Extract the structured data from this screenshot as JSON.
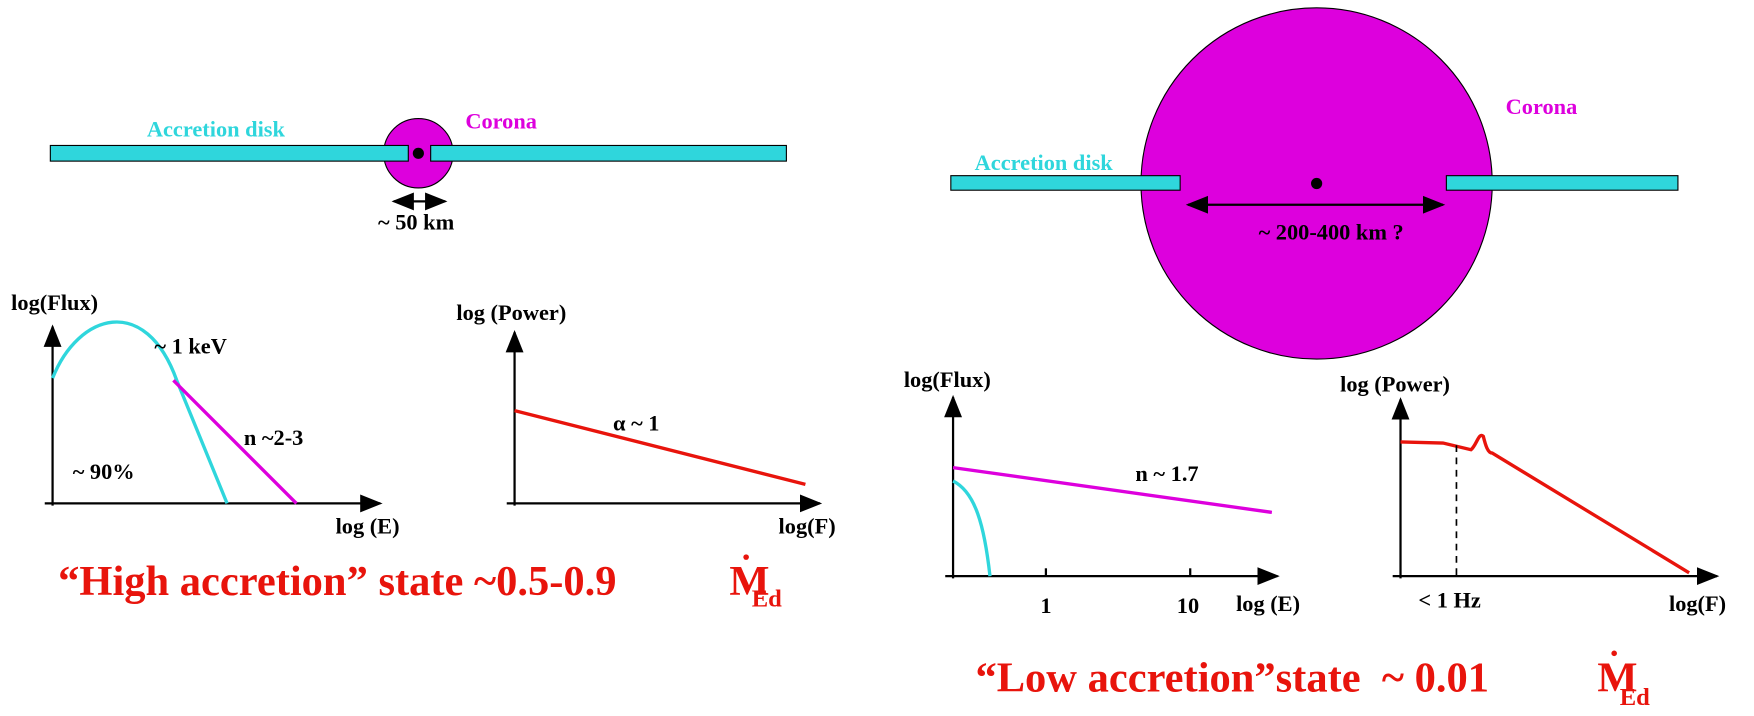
{
  "left_panel": {
    "disk_label": "Accretion disk",
    "corona_label": "Corona",
    "size_label": "~ 50 km",
    "spectrum": {
      "y_label": "log(Flux)",
      "x_label": "log (E)",
      "peak_label": "~ 1 keV",
      "slope_label": "n ~2-3",
      "fraction_label": "~ 90%"
    },
    "power": {
      "y_label": "log (Power)",
      "x_label": "log(F)",
      "slope_label": "α ~ 1"
    },
    "state_title": {
      "text": "“High accretion” state ~0.5-0.9",
      "symbol": "M",
      "subscript": "Ed"
    }
  },
  "right_panel": {
    "disk_label": "Accretion disk",
    "corona_label": "Corona",
    "size_label": "~ 200-400 km ?",
    "spectrum": {
      "y_label": "log(Flux)",
      "x_label": "log (E)",
      "slope_label": "n ~ 1.7",
      "tick_labels": [
        "1",
        "10"
      ]
    },
    "power": {
      "y_label": "log (Power)",
      "x_label": "log(F)",
      "break_label": "< 1 Hz"
    },
    "state_title": {
      "text": "“Low accretion”state  ~ 0.01",
      "symbol": "M",
      "subscript": "Ed"
    }
  }
}
